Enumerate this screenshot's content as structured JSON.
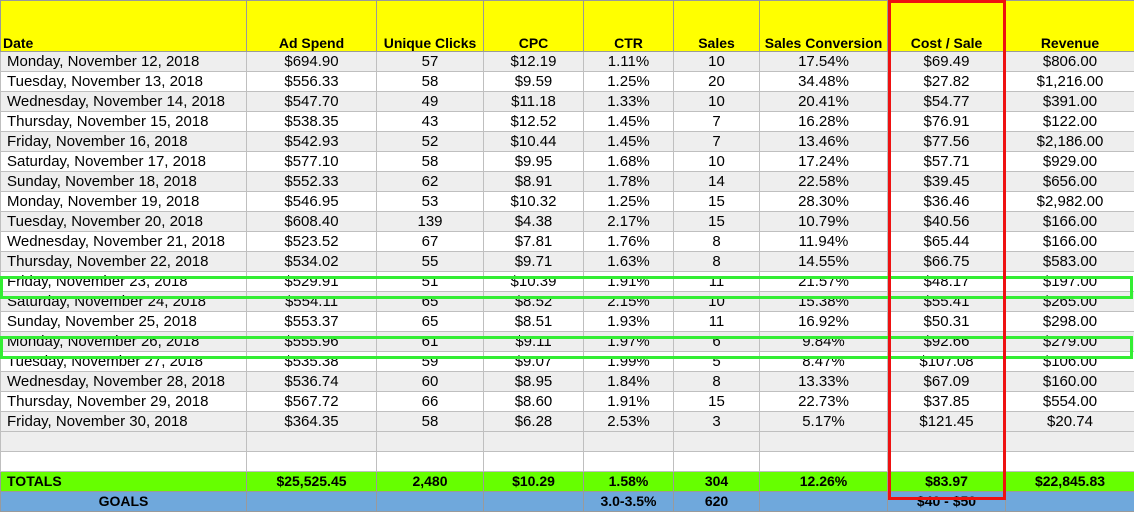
{
  "headers": [
    "Date",
    "Ad Spend",
    "Unique Clicks",
    "CPC",
    "CTR",
    "Sales",
    "Sales Conversion",
    "Cost / Sale",
    "Revenue"
  ],
  "rows": [
    [
      "Monday, November 12, 2018",
      "$694.90",
      "57",
      "$12.19",
      "1.11%",
      "10",
      "17.54%",
      "$69.49",
      "$806.00"
    ],
    [
      "Tuesday, November 13, 2018",
      "$556.33",
      "58",
      "$9.59",
      "1.25%",
      "20",
      "34.48%",
      "$27.82",
      "$1,216.00"
    ],
    [
      "Wednesday, November 14, 2018",
      "$547.70",
      "49",
      "$11.18",
      "1.33%",
      "10",
      "20.41%",
      "$54.77",
      "$391.00"
    ],
    [
      "Thursday, November 15, 2018",
      "$538.35",
      "43",
      "$12.52",
      "1.45%",
      "7",
      "16.28%",
      "$76.91",
      "$122.00"
    ],
    [
      "Friday, November 16, 2018",
      "$542.93",
      "52",
      "$10.44",
      "1.45%",
      "7",
      "13.46%",
      "$77.56",
      "$2,186.00"
    ],
    [
      "Saturday, November 17, 2018",
      "$577.10",
      "58",
      "$9.95",
      "1.68%",
      "10",
      "17.24%",
      "$57.71",
      "$929.00"
    ],
    [
      "Sunday, November 18, 2018",
      "$552.33",
      "62",
      "$8.91",
      "1.78%",
      "14",
      "22.58%",
      "$39.45",
      "$656.00"
    ],
    [
      "Monday, November 19, 2018",
      "$546.95",
      "53",
      "$10.32",
      "1.25%",
      "15",
      "28.30%",
      "$36.46",
      "$2,982.00"
    ],
    [
      "Tuesday, November 20, 2018",
      "$608.40",
      "139",
      "$4.38",
      "2.17%",
      "15",
      "10.79%",
      "$40.56",
      "$166.00"
    ],
    [
      "Wednesday, November 21, 2018",
      "$523.52",
      "67",
      "$7.81",
      "1.76%",
      "8",
      "11.94%",
      "$65.44",
      "$166.00"
    ],
    [
      "Thursday, November 22, 2018",
      "$534.02",
      "55",
      "$9.71",
      "1.63%",
      "8",
      "14.55%",
      "$66.75",
      "$583.00"
    ],
    [
      "Friday, November 23, 2018",
      "$529.91",
      "51",
      "$10.39",
      "1.91%",
      "11",
      "21.57%",
      "$48.17",
      "$197.00"
    ],
    [
      "Saturday, November 24, 2018",
      "$554.11",
      "65",
      "$8.52",
      "2.15%",
      "10",
      "15.38%",
      "$55.41",
      "$265.00"
    ],
    [
      "Sunday, November 25, 2018",
      "$553.37",
      "65",
      "$8.51",
      "1.93%",
      "11",
      "16.92%",
      "$50.31",
      "$298.00"
    ],
    [
      "Monday, November 26, 2018",
      "$555.96",
      "61",
      "$9.11",
      "1.97%",
      "6",
      "9.84%",
      "$92.66",
      "$279.00"
    ],
    [
      "Tuesday, November 27, 2018",
      "$535.38",
      "59",
      "$9.07",
      "1.99%",
      "5",
      "8.47%",
      "$107.08",
      "$106.00"
    ],
    [
      "Wednesday, November 28, 2018",
      "$536.74",
      "60",
      "$8.95",
      "1.84%",
      "8",
      "13.33%",
      "$67.09",
      "$160.00"
    ],
    [
      "Thursday, November 29, 2018",
      "$567.72",
      "66",
      "$8.60",
      "1.91%",
      "15",
      "22.73%",
      "$37.85",
      "$554.00"
    ],
    [
      "Friday, November 30, 2018",
      "$364.35",
      "58",
      "$6.28",
      "2.53%",
      "3",
      "5.17%",
      "$121.45",
      "$20.74"
    ]
  ],
  "totals": [
    "TOTALS",
    "$25,525.45",
    "2,480",
    "$10.29",
    "1.58%",
    "304",
    "12.26%",
    "$83.97",
    "$22,845.83"
  ],
  "goals": [
    "GOALS",
    "",
    "",
    "",
    "3.0-3.5%",
    "620",
    "",
    "$40 - $50",
    ""
  ],
  "colors": {
    "header_bg": "#ffff00",
    "totals_bg": "#66ff00",
    "goals_bg": "#6fa8dc",
    "row_highlight_border": "#33ee33",
    "column_highlight_border": "#ee1111"
  }
}
